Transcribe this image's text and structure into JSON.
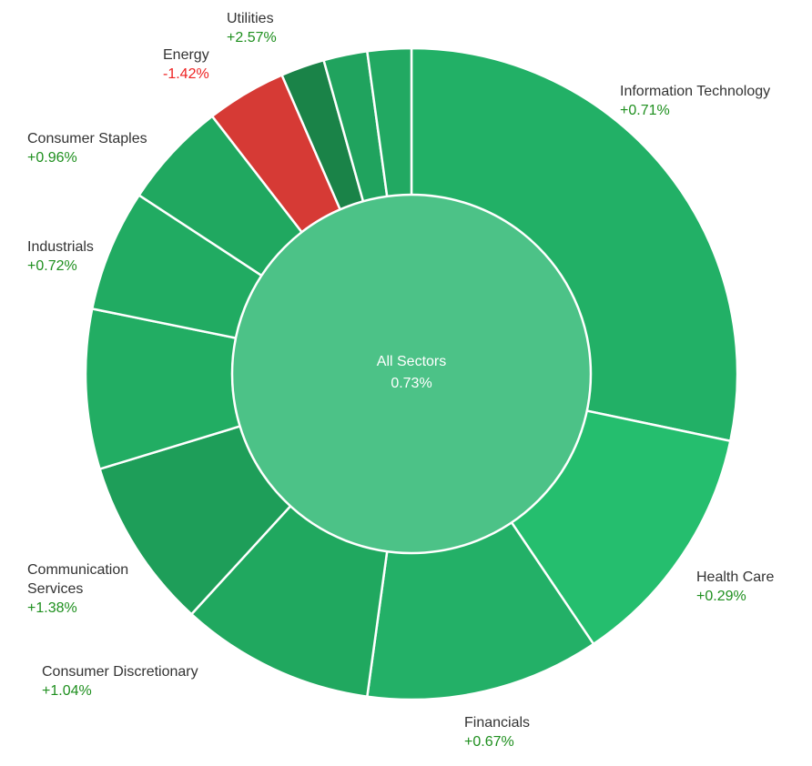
{
  "chart_data": {
    "type": "pie",
    "center": {
      "label": "All Sectors",
      "value": "0.73%"
    },
    "slices": [
      {
        "name": "Information Technology",
        "change": "+0.71%",
        "weight": 30.0,
        "color": "#22b066"
      },
      {
        "name": "Health Care",
        "change": "+0.29%",
        "weight": 13.0,
        "color": "#25be6e"
      },
      {
        "name": "Financials",
        "change": "+0.67%",
        "weight": 12.3,
        "color": "#23b067"
      },
      {
        "name": "Consumer Discretionary",
        "change": "+1.04%",
        "weight": 10.2,
        "color": "#20a85f"
      },
      {
        "name": "Communication Services",
        "change": "+1.38%",
        "weight": 9.0,
        "color": "#1e9e59"
      },
      {
        "name": "",
        "change": "",
        "weight": 8.4,
        "color": "#22ad63"
      },
      {
        "name": "Industrials",
        "change": "+0.72%",
        "weight": 6.4,
        "color": "#21ab62"
      },
      {
        "name": "Consumer Staples",
        "change": "+0.96%",
        "weight": 5.6,
        "color": "#20a860"
      },
      {
        "name": "Energy",
        "change": "-1.42%",
        "weight": 4.2,
        "color": "#d63a35"
      },
      {
        "name": "",
        "change": "",
        "weight": 2.3,
        "color": "#1a8348"
      },
      {
        "name": "Utilities",
        "change": "+2.57%",
        "weight": 2.3,
        "color": "#20a35e"
      },
      {
        "name": "",
        "change": "",
        "weight": 2.3,
        "color": "#22a962"
      }
    ],
    "center_color": "#4cc287",
    "positive_text_color": "#1e8f1e",
    "negative_text_color": "#ee2222"
  }
}
